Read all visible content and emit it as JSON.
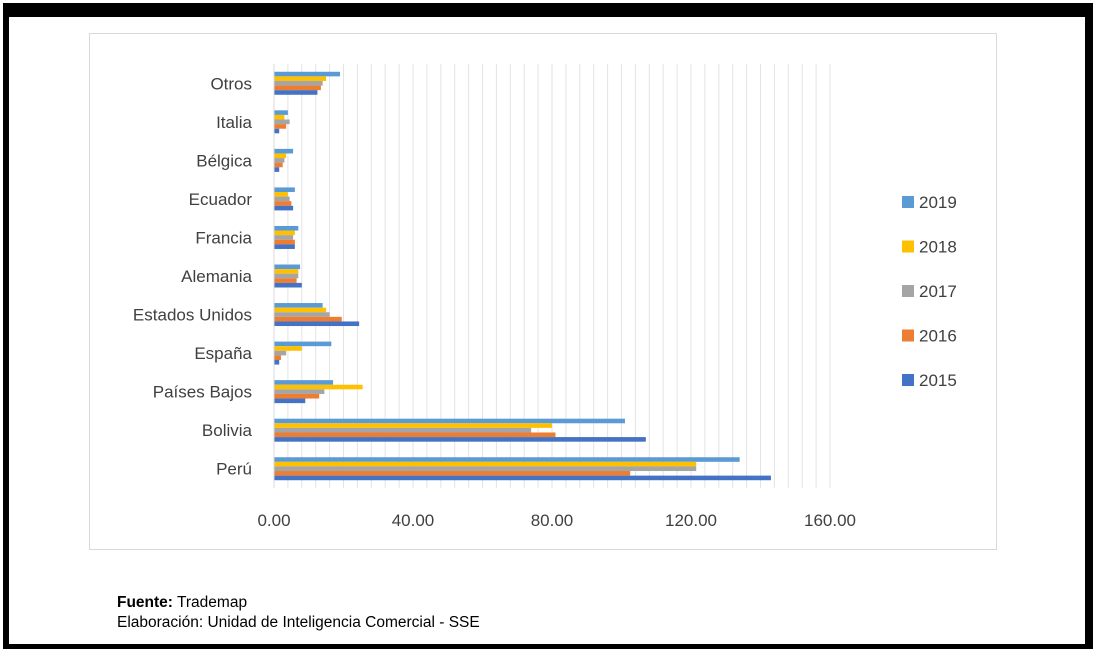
{
  "chart_data": {
    "type": "bar",
    "orientation": "horizontal",
    "categories": [
      "Otros",
      "Italia",
      "Bélgica",
      "Ecuador",
      "Francia",
      "Alemania",
      "Estados Unidos",
      "España",
      "Países Bajos",
      "Bolivia",
      "Perú"
    ],
    "series": [
      {
        "name": "2019",
        "color": "#5b9bd5",
        "values": [
          19,
          4,
          5.5,
          6,
          7,
          7.5,
          14,
          16.5,
          17,
          101,
          134
        ]
      },
      {
        "name": "2018",
        "color": "#ffc000",
        "values": [
          15,
          3,
          3.5,
          4,
          6,
          7,
          15,
          8,
          25.5,
          80,
          121.5
        ]
      },
      {
        "name": "2017",
        "color": "#a5a5a5",
        "values": [
          14,
          4.5,
          3,
          4.5,
          5.5,
          7,
          16,
          3.5,
          14.5,
          74,
          121.5
        ]
      },
      {
        "name": "2016",
        "color": "#ed7d31",
        "values": [
          13.5,
          3.5,
          2.5,
          5,
          6,
          6.5,
          19.5,
          2,
          13,
          81,
          102.5
        ]
      },
      {
        "name": "2015",
        "color": "#4472c4",
        "values": [
          12.5,
          1.5,
          1.5,
          5.5,
          6,
          8,
          24.5,
          1.5,
          9,
          107,
          143
        ]
      }
    ],
    "legend_order": [
      "2019",
      "2018",
      "2017",
      "2016",
      "2015"
    ],
    "legend_position": "right",
    "xlim": [
      0,
      160
    ],
    "xticks": [
      "0.00",
      "40.00",
      "80.00",
      "120.00",
      "160.00"
    ],
    "minor_gridline_step": 4,
    "title": "",
    "xlabel": "",
    "ylabel": ""
  },
  "footer": {
    "source_label": "Fuente:",
    "source_value": " Trademap",
    "elaboration": "Elaboración: Unidad de Inteligencia Comercial - SSE"
  }
}
